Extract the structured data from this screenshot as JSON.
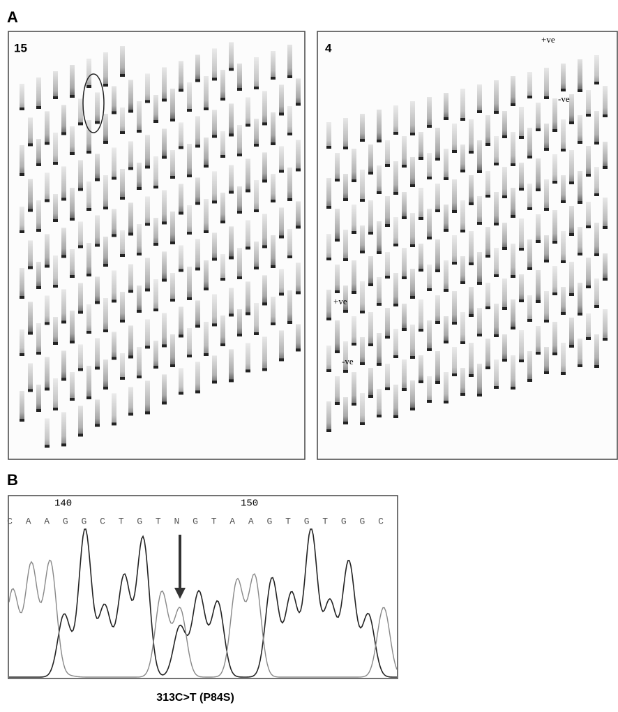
{
  "figure": {
    "panel_a": {
      "label": "A",
      "left_gel": {
        "label": "15"
      },
      "right_gel": {
        "label": "4",
        "top_plus": "+ve",
        "top_minus": "-ve",
        "left_plus": "+ve",
        "left_minus": "-ve"
      }
    },
    "panel_b": {
      "label": "B",
      "positions": [
        "140",
        "150"
      ],
      "sequence": [
        "C",
        "A",
        "A",
        "G",
        "G",
        "C",
        "T",
        "G",
        "T",
        "N",
        "G",
        "T",
        "A",
        "A",
        "G",
        "T",
        "G",
        "T",
        "G",
        "G",
        "C"
      ],
      "caption": "313C>T (P84S)"
    }
  }
}
